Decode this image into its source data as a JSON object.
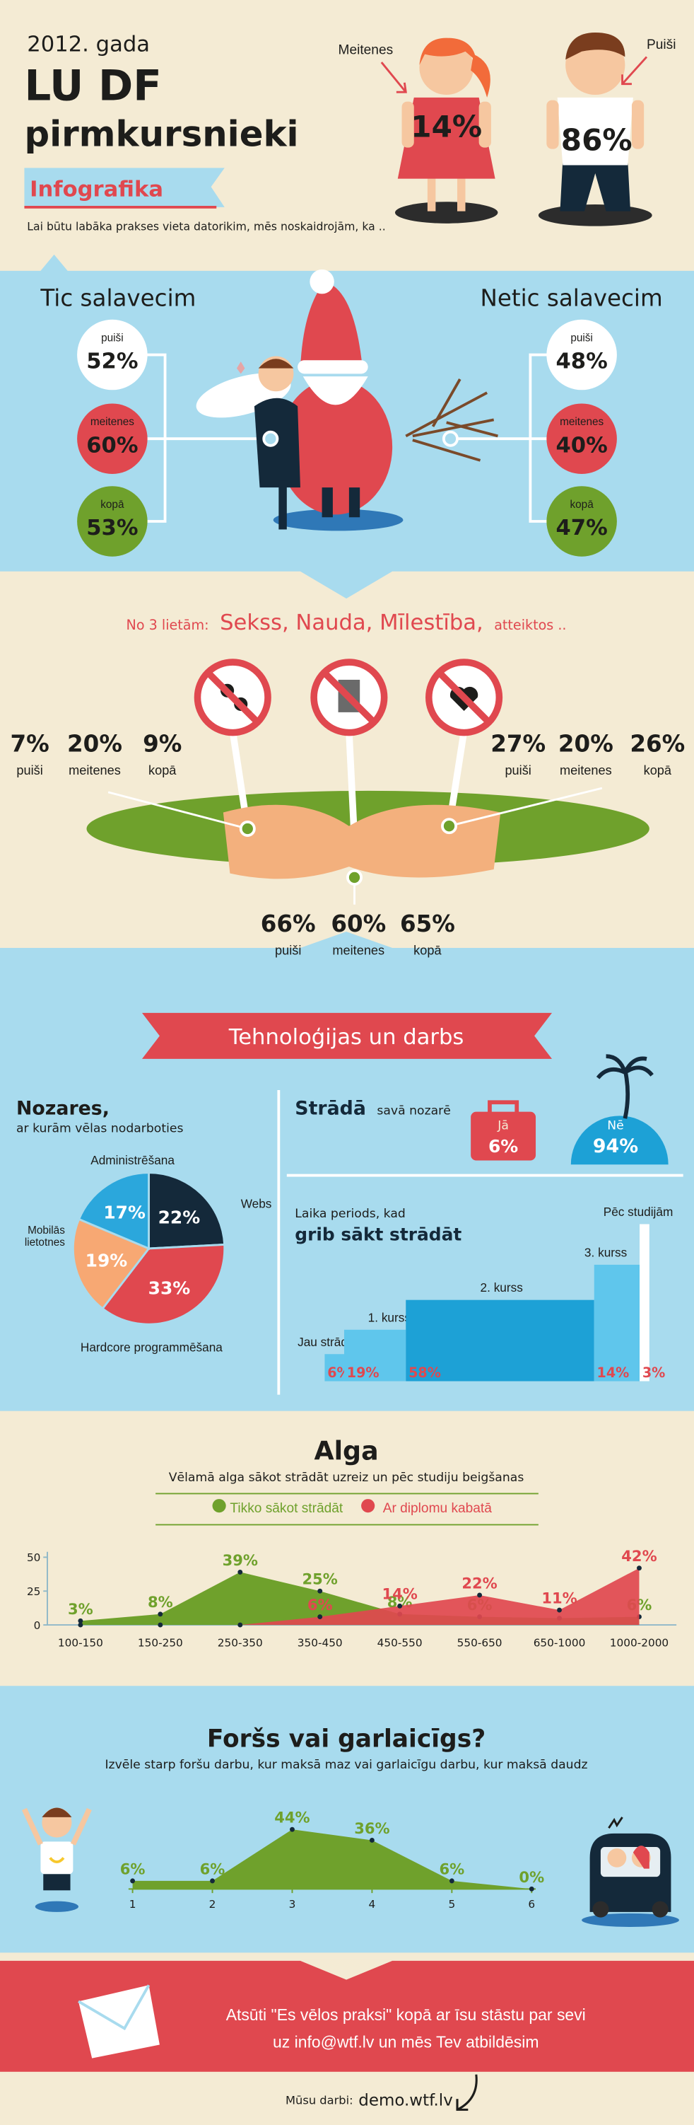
{
  "header": {
    "year": "2012. gada",
    "title_line1": "LU DF",
    "title_line2": "pirmkursnieki",
    "ribbon": "Infografika",
    "intro": "Lai būtu labāka prakses vieta datorikim, mēs noskaidrojām, ka .."
  },
  "gender": [
    {
      "label": "Meitenes",
      "value": "14%"
    },
    {
      "label": "Puiši",
      "value": "86%"
    }
  ],
  "santa": {
    "believe": {
      "title": "Tic salavecim",
      "items": [
        {
          "label": "puiši",
          "value": "52%"
        },
        {
          "label": "meitenes",
          "value": "60%"
        },
        {
          "label": "kopā",
          "value": "53%"
        }
      ]
    },
    "not_believe": {
      "title": "Netic salavecim",
      "items": [
        {
          "label": "puiši",
          "value": "48%"
        },
        {
          "label": "meitenes",
          "value": "40%"
        },
        {
          "label": "kopā",
          "value": "47%"
        }
      ]
    }
  },
  "refuse": {
    "prefix": "No 3 lietām:",
    "items": "Sekss, Nauda, Mīlestība,",
    "suffix": "atteiktos ..",
    "groups": [
      [
        {
          "value": "7%",
          "label": "puiši"
        },
        {
          "value": "20%",
          "label": "meitenes"
        },
        {
          "value": "9%",
          "label": "kopā"
        }
      ],
      [
        {
          "value": "27%",
          "label": "puiši"
        },
        {
          "value": "20%",
          "label": "meitenes"
        },
        {
          "value": "26%",
          "label": "kopā"
        }
      ],
      [
        {
          "value": "66%",
          "label": "puiši"
        },
        {
          "value": "60%",
          "label": "meitenes"
        },
        {
          "value": "65%",
          "label": "kopā"
        }
      ]
    ]
  },
  "tech": {
    "banner": "Tehnoloģijas un darbs",
    "fields_title": "Nozares,",
    "fields_subtitle": "ar kurām vēlas nodarboties",
    "works_title": "Strādā",
    "works_subtitle": "savā nozarē",
    "works": [
      {
        "label": "Jā",
        "value": "6%"
      },
      {
        "label": "Nē",
        "value": "94%"
      }
    ],
    "period_title": "Laika periods, kad",
    "period_subtitle": "grib sākt strādāt"
  },
  "chart_data": [
    {
      "type": "pie",
      "categories": [
        "Webs",
        "Hardcore programmēšana",
        "Mobilās lietotnes",
        "Administrēšana"
      ],
      "values": [
        22,
        33,
        19,
        17
      ],
      "value_labels": [
        "22%",
        "33%",
        "19%",
        "17%"
      ],
      "colors": [
        "#14293a",
        "#e0484f",
        "#f7a873",
        "#2ba7dc"
      ]
    },
    {
      "type": "bar",
      "categories": [
        "Jau strādā",
        "1. kurss",
        "2. kurss",
        "3. kurss",
        "Pēc studijām"
      ],
      "values": [
        6,
        19,
        58,
        14,
        3
      ],
      "value_labels": [
        "6%",
        "19%",
        "58%",
        "14%",
        "3%"
      ],
      "colors": [
        "#5fc6ec",
        "#5fc6ec",
        "#1da1d6",
        "#5fc6ec",
        "#ffffff"
      ]
    },
    {
      "type": "area",
      "title": "Alga",
      "subtitle": "Vēlamā alga sākot strādāt uzreiz un pēc studiju beigšanas",
      "categories": [
        "100-150",
        "150-250",
        "250-350",
        "350-450",
        "450-550",
        "550-650",
        "650-1000",
        "1000-2000"
      ],
      "series": [
        {
          "name": "Tikko sākot strādāt",
          "color": "#6fa12c",
          "values": [
            3,
            8,
            39,
            25,
            8,
            6,
            5,
            6
          ],
          "value_labels": [
            "3%",
            "8%",
            "39%",
            "25%",
            "8%",
            "6%",
            null,
            "6%"
          ]
        },
        {
          "name": "Ar diplomu kabatā",
          "color": "#e0484f",
          "values": [
            0,
            0,
            0,
            6,
            14,
            22,
            11,
            42
          ],
          "value_labels": [
            null,
            null,
            null,
            "6%",
            "14%",
            "22%",
            "11%",
            "42%"
          ]
        }
      ],
      "ylim": [
        0,
        50
      ],
      "yticks": [
        0,
        25,
        50
      ]
    },
    {
      "type": "area",
      "title": "Foršs vai garlaicīgs?",
      "subtitle": "Izvēle starp foršu darbu, kur maksā maz vai garlaicīgu darbu, kur maksā daudz",
      "x": [
        1,
        2,
        3,
        4,
        5,
        6
      ],
      "series": [
        {
          "color": "#6fa12c",
          "values": [
            6,
            6,
            44,
            36,
            6,
            0
          ],
          "value_labels": [
            "6%",
            "6%",
            "44%",
            "36%",
            "6%",
            "0%"
          ]
        }
      ],
      "xlim": [
        1,
        6
      ],
      "xticks": [
        1,
        2,
        3,
        4,
        5,
        6
      ]
    }
  ],
  "footer": {
    "line1": "Atsūti \"Es vēlos praksi\" kopā ar īsu stāstu par sevi",
    "line2": "uz info@wtf.lv un mēs Tev atbildēsim",
    "works_label": "Mūsu darbi:",
    "works_url": "demo.wtf.lv"
  }
}
